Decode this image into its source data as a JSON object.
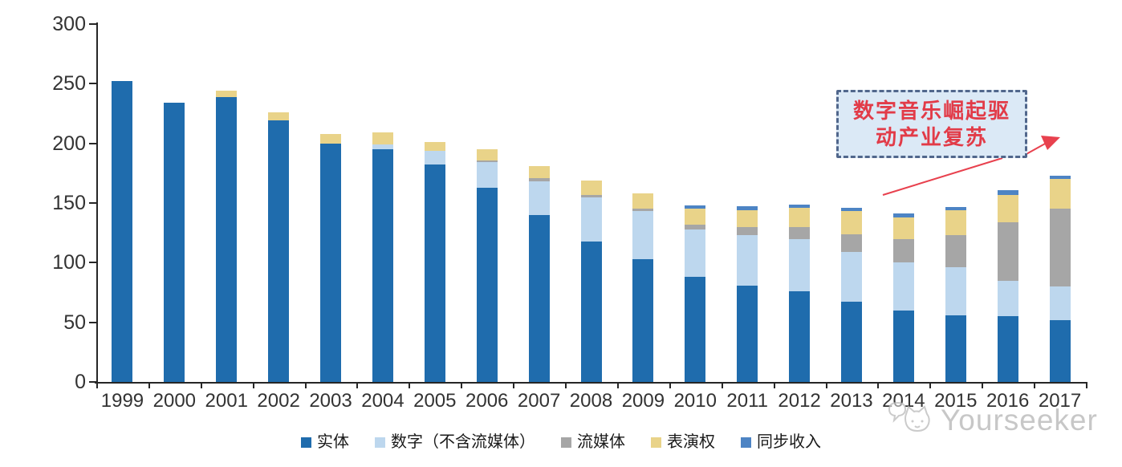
{
  "chart_data": {
    "type": "bar",
    "stacked": true,
    "categories": [
      "1999",
      "2000",
      "2001",
      "2002",
      "2003",
      "2004",
      "2005",
      "2006",
      "2007",
      "2008",
      "2009",
      "2010",
      "2011",
      "2012",
      "2013",
      "2014",
      "2015",
      "2016",
      "2017"
    ],
    "series": [
      {
        "name": "实体",
        "color": "#1f6cad",
        "values": [
          252,
          234,
          239,
          219,
          200,
          195,
          182,
          163,
          140,
          118,
          103,
          88,
          81,
          76,
          67,
          60,
          56,
          55,
          52
        ]
      },
      {
        "name": "数字（不含流媒体）",
        "color": "#bdd7ee",
        "values": [
          0,
          0,
          0,
          0,
          0,
          4,
          12,
          21,
          28,
          37,
          40,
          40,
          42,
          44,
          42,
          40,
          40,
          30,
          28
        ]
      },
      {
        "name": "流媒体",
        "color": "#a6a6a6",
        "values": [
          0,
          0,
          0,
          0,
          0,
          0,
          0,
          2,
          3,
          2,
          2,
          4,
          7,
          10,
          15,
          20,
          27,
          49,
          65
        ]
      },
      {
        "name": "表演权",
        "color": "#e9d389",
        "values": [
          0,
          0,
          5,
          7,
          8,
          10,
          7,
          9,
          10,
          12,
          13,
          13,
          14,
          16,
          19,
          18,
          21,
          23,
          25
        ]
      },
      {
        "name": "同步收入",
        "color": "#4d84c4",
        "values": [
          0,
          0,
          0,
          0,
          0,
          0,
          0,
          0,
          0,
          0,
          0,
          3,
          3,
          3,
          3,
          3,
          3,
          4,
          3
        ]
      }
    ],
    "ylim": [
      0,
      300
    ],
    "yticks": [
      0,
      50,
      100,
      150,
      200,
      250,
      300
    ],
    "grid": false,
    "legend_position": "bottom"
  },
  "annotation": {
    "line1": "数字音乐崛起驱",
    "line2": "动产业复苏",
    "text_color": "#e23b48",
    "box_fill": "#dbe9f6",
    "box_border": "#51678c",
    "arrow_color": "#e8414e"
  },
  "watermark": {
    "text": "Yourseeker"
  },
  "axis": {
    "line_color": "#262626",
    "label_color": "#333333"
  }
}
